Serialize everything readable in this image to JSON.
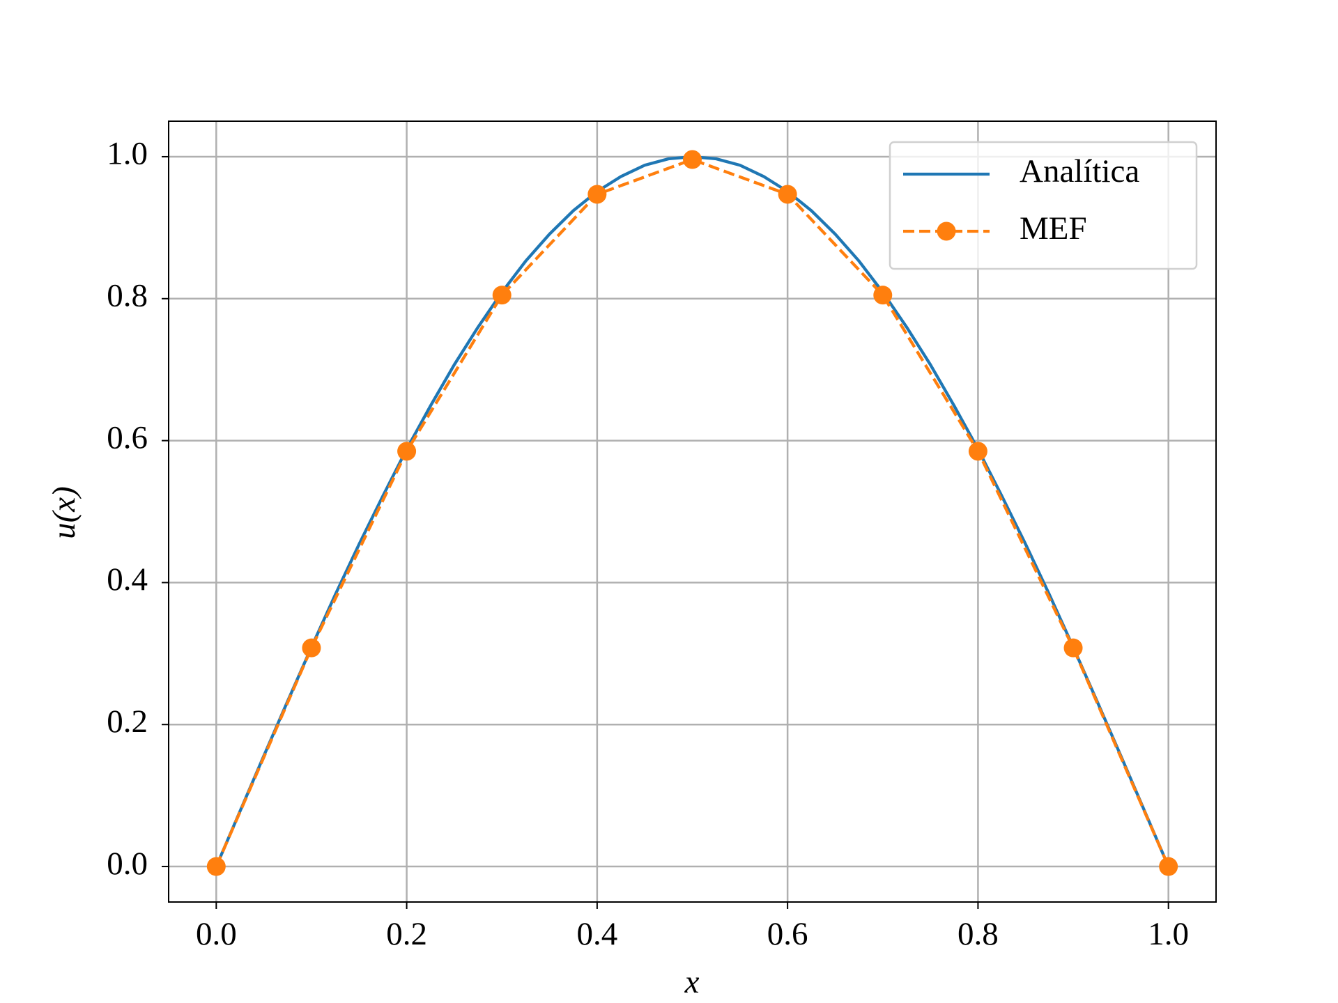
{
  "chart_data": {
    "type": "line",
    "xlabel": "x",
    "ylabel": "u(x)",
    "xlim": [
      -0.05,
      1.05
    ],
    "ylim": [
      -0.05,
      1.05
    ],
    "xticks": [
      {
        "value": 0,
        "label": "0.0"
      },
      0.2,
      0.4,
      0.6,
      0.8,
      {
        "value": 1,
        "label": "1.0"
      }
    ],
    "yticks": [
      {
        "value": 0,
        "label": "0.0"
      },
      0.2,
      0.4,
      0.6,
      0.8,
      {
        "value": 1,
        "label": "1.0"
      }
    ],
    "grid": true,
    "legend": "upper right",
    "series": [
      {
        "name": "Analítica",
        "color": "#1f77b4",
        "style": "solid",
        "x": [
          0,
          0.025,
          0.05,
          0.075,
          0.1,
          0.125,
          0.15,
          0.175,
          0.2,
          0.225,
          0.25,
          0.275,
          0.3,
          0.325,
          0.35,
          0.375,
          0.4,
          0.425,
          0.45,
          0.475,
          0.5,
          0.525,
          0.55,
          0.575,
          0.6,
          0.625,
          0.65,
          0.675,
          0.7,
          0.725,
          0.75,
          0.775,
          0.8,
          0.825,
          0.85,
          0.875,
          0.9,
          0.925,
          0.95,
          0.975,
          1
        ],
        "values": [
          0,
          0.078,
          0.156,
          0.233,
          0.309,
          0.383,
          0.454,
          0.522,
          0.588,
          0.649,
          0.707,
          0.76,
          0.809,
          0.853,
          0.891,
          0.924,
          0.951,
          0.972,
          0.988,
          0.997,
          1,
          0.997,
          0.988,
          0.972,
          0.951,
          0.924,
          0.891,
          0.853,
          0.809,
          0.76,
          0.707,
          0.649,
          0.588,
          0.522,
          0.454,
          0.383,
          0.309,
          0.233,
          0.156,
          0.078,
          0
        ]
      },
      {
        "name": "MEF",
        "color": "#ff7f0e",
        "style": "dashed",
        "marker": "o",
        "x": [
          0,
          0.1,
          0.2,
          0.3,
          0.4,
          0.5,
          0.6,
          0.7,
          0.8,
          0.9,
          1
        ],
        "values": [
          0,
          0.308,
          0.585,
          0.805,
          0.947,
          0.996,
          0.947,
          0.805,
          0.585,
          0.308,
          0
        ]
      }
    ]
  }
}
